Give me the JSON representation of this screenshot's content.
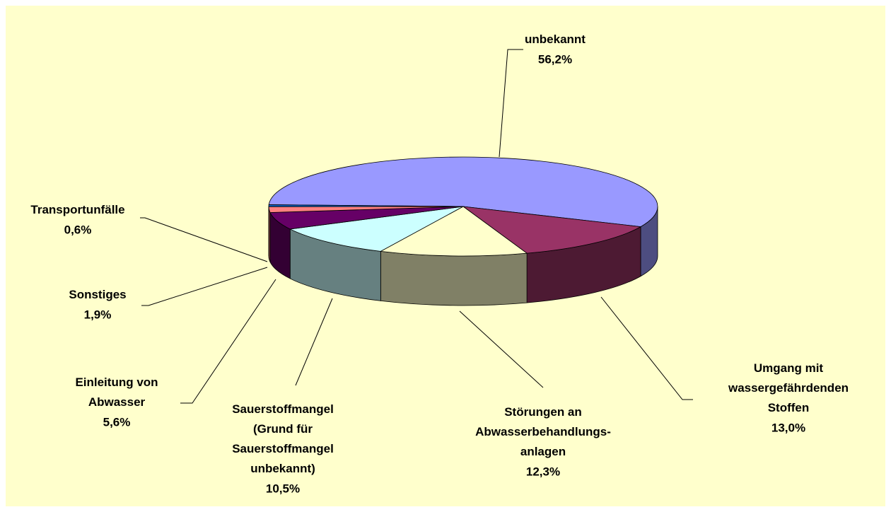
{
  "chart_data": {
    "type": "pie",
    "categories": [
      "unbekannt",
      "Umgang mit\nwassergefährdenden\nStoffen",
      "Störungen an\nAbwasserbehandlungs-\nanlagen",
      "Sauerstoffmangel\n(Grund für\nSauerstoffmangel\nunbekannt)",
      "Einleitung von\nAbwasser",
      "Sonstiges",
      "Transportunfälle"
    ],
    "values": [
      56.2,
      13.0,
      12.3,
      10.5,
      5.6,
      1.9,
      0.6
    ],
    "value_labels": [
      "56,2%",
      "13,0%",
      "12,3%",
      "10,5%",
      "5,6%",
      "1,9%",
      "0,6%"
    ],
    "colors": [
      "#9999ff",
      "#993366",
      "#ffffcc",
      "#ccffff",
      "#660066",
      "#ff8080",
      "#0066cc"
    ]
  }
}
